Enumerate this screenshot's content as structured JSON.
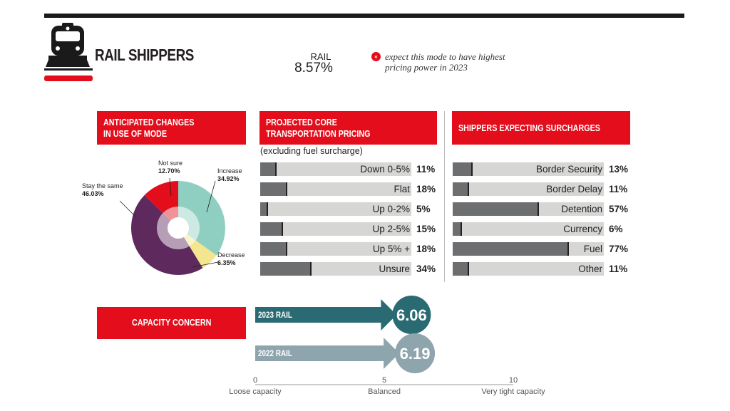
{
  "header": {
    "title": "RAIL SHIPPERS",
    "mode_label": "RAIL",
    "mode_value": "8.57%",
    "note": "expect this mode to have highest pricing power in 2023",
    "note_icon": "double-chevron-left-icon"
  },
  "colors": {
    "accent": "#e30d1b",
    "bar_fill": "#6d6e70",
    "bar_bg": "#d6d6d4",
    "rail_2023": "#2a6b73",
    "rail_2022": "#8fa5ad"
  },
  "anticipated": {
    "title_line1": "ANTICIPATED CHANGES",
    "title_line2": "IN USE OF MODE"
  },
  "pricing": {
    "title_line1": "PROJECTED CORE",
    "title_line2": "TRANSPORTATION PRICING",
    "subtitle": "(excluding fuel surcharge)"
  },
  "surcharges": {
    "title": "SHIPPERS EXPECTING SURCHARGES"
  },
  "capacity": {
    "title": "CAPACITY CONCERN"
  },
  "chart_data": [
    {
      "type": "pie",
      "title": "ANTICIPATED CHANGES IN USE OF MODE",
      "slices": [
        {
          "label": "Increase",
          "value": 34.92,
          "display": "34.92%",
          "color": "#8fcfc1"
        },
        {
          "label": "Decrease",
          "value": 6.35,
          "display": "6.35%",
          "color": "#f3e68f"
        },
        {
          "label": "Stay the same",
          "value": 46.03,
          "display": "46.03%",
          "color": "#5e2a5e"
        },
        {
          "label": "Not sure",
          "value": 12.7,
          "display": "12.70%",
          "color": "#e30d1b"
        }
      ]
    },
    {
      "type": "bar",
      "title": "PROJECTED CORE TRANSPORTATION PRICING",
      "categories": [
        "Down 0-5%",
        "Flat",
        "Up 0-2%",
        "Up 2-5%",
        "Up 5% +",
        "Unsure"
      ],
      "values": [
        11,
        18,
        5,
        15,
        18,
        34
      ],
      "labels": [
        "11%",
        "18%",
        "5%",
        "15%",
        "18%",
        "34%"
      ],
      "ylim": [
        0,
        100
      ]
    },
    {
      "type": "bar",
      "title": "SHIPPERS EXPECTING SURCHARGES",
      "categories": [
        "Border Security",
        "Border Delay",
        "Detention",
        "Currency",
        "Fuel",
        "Other"
      ],
      "values": [
        13,
        11,
        57,
        6,
        77,
        11
      ],
      "labels": [
        "13%",
        "11%",
        "57%",
        "6%",
        "77%",
        "11%"
      ],
      "ylim": [
        0,
        100
      ]
    },
    {
      "type": "bar",
      "title": "CAPACITY CONCERN",
      "series": [
        {
          "name": "2023 RAIL",
          "value": 6.06,
          "display": "6.06"
        },
        {
          "name": "2022 RAIL",
          "value": 6.19,
          "display": "6.19"
        }
      ],
      "xlim": [
        0,
        10
      ],
      "ticks": [
        "0",
        "5",
        "10"
      ],
      "tick_captions": [
        "Loose capacity",
        "Balanced",
        "Very tight capacity"
      ]
    }
  ]
}
